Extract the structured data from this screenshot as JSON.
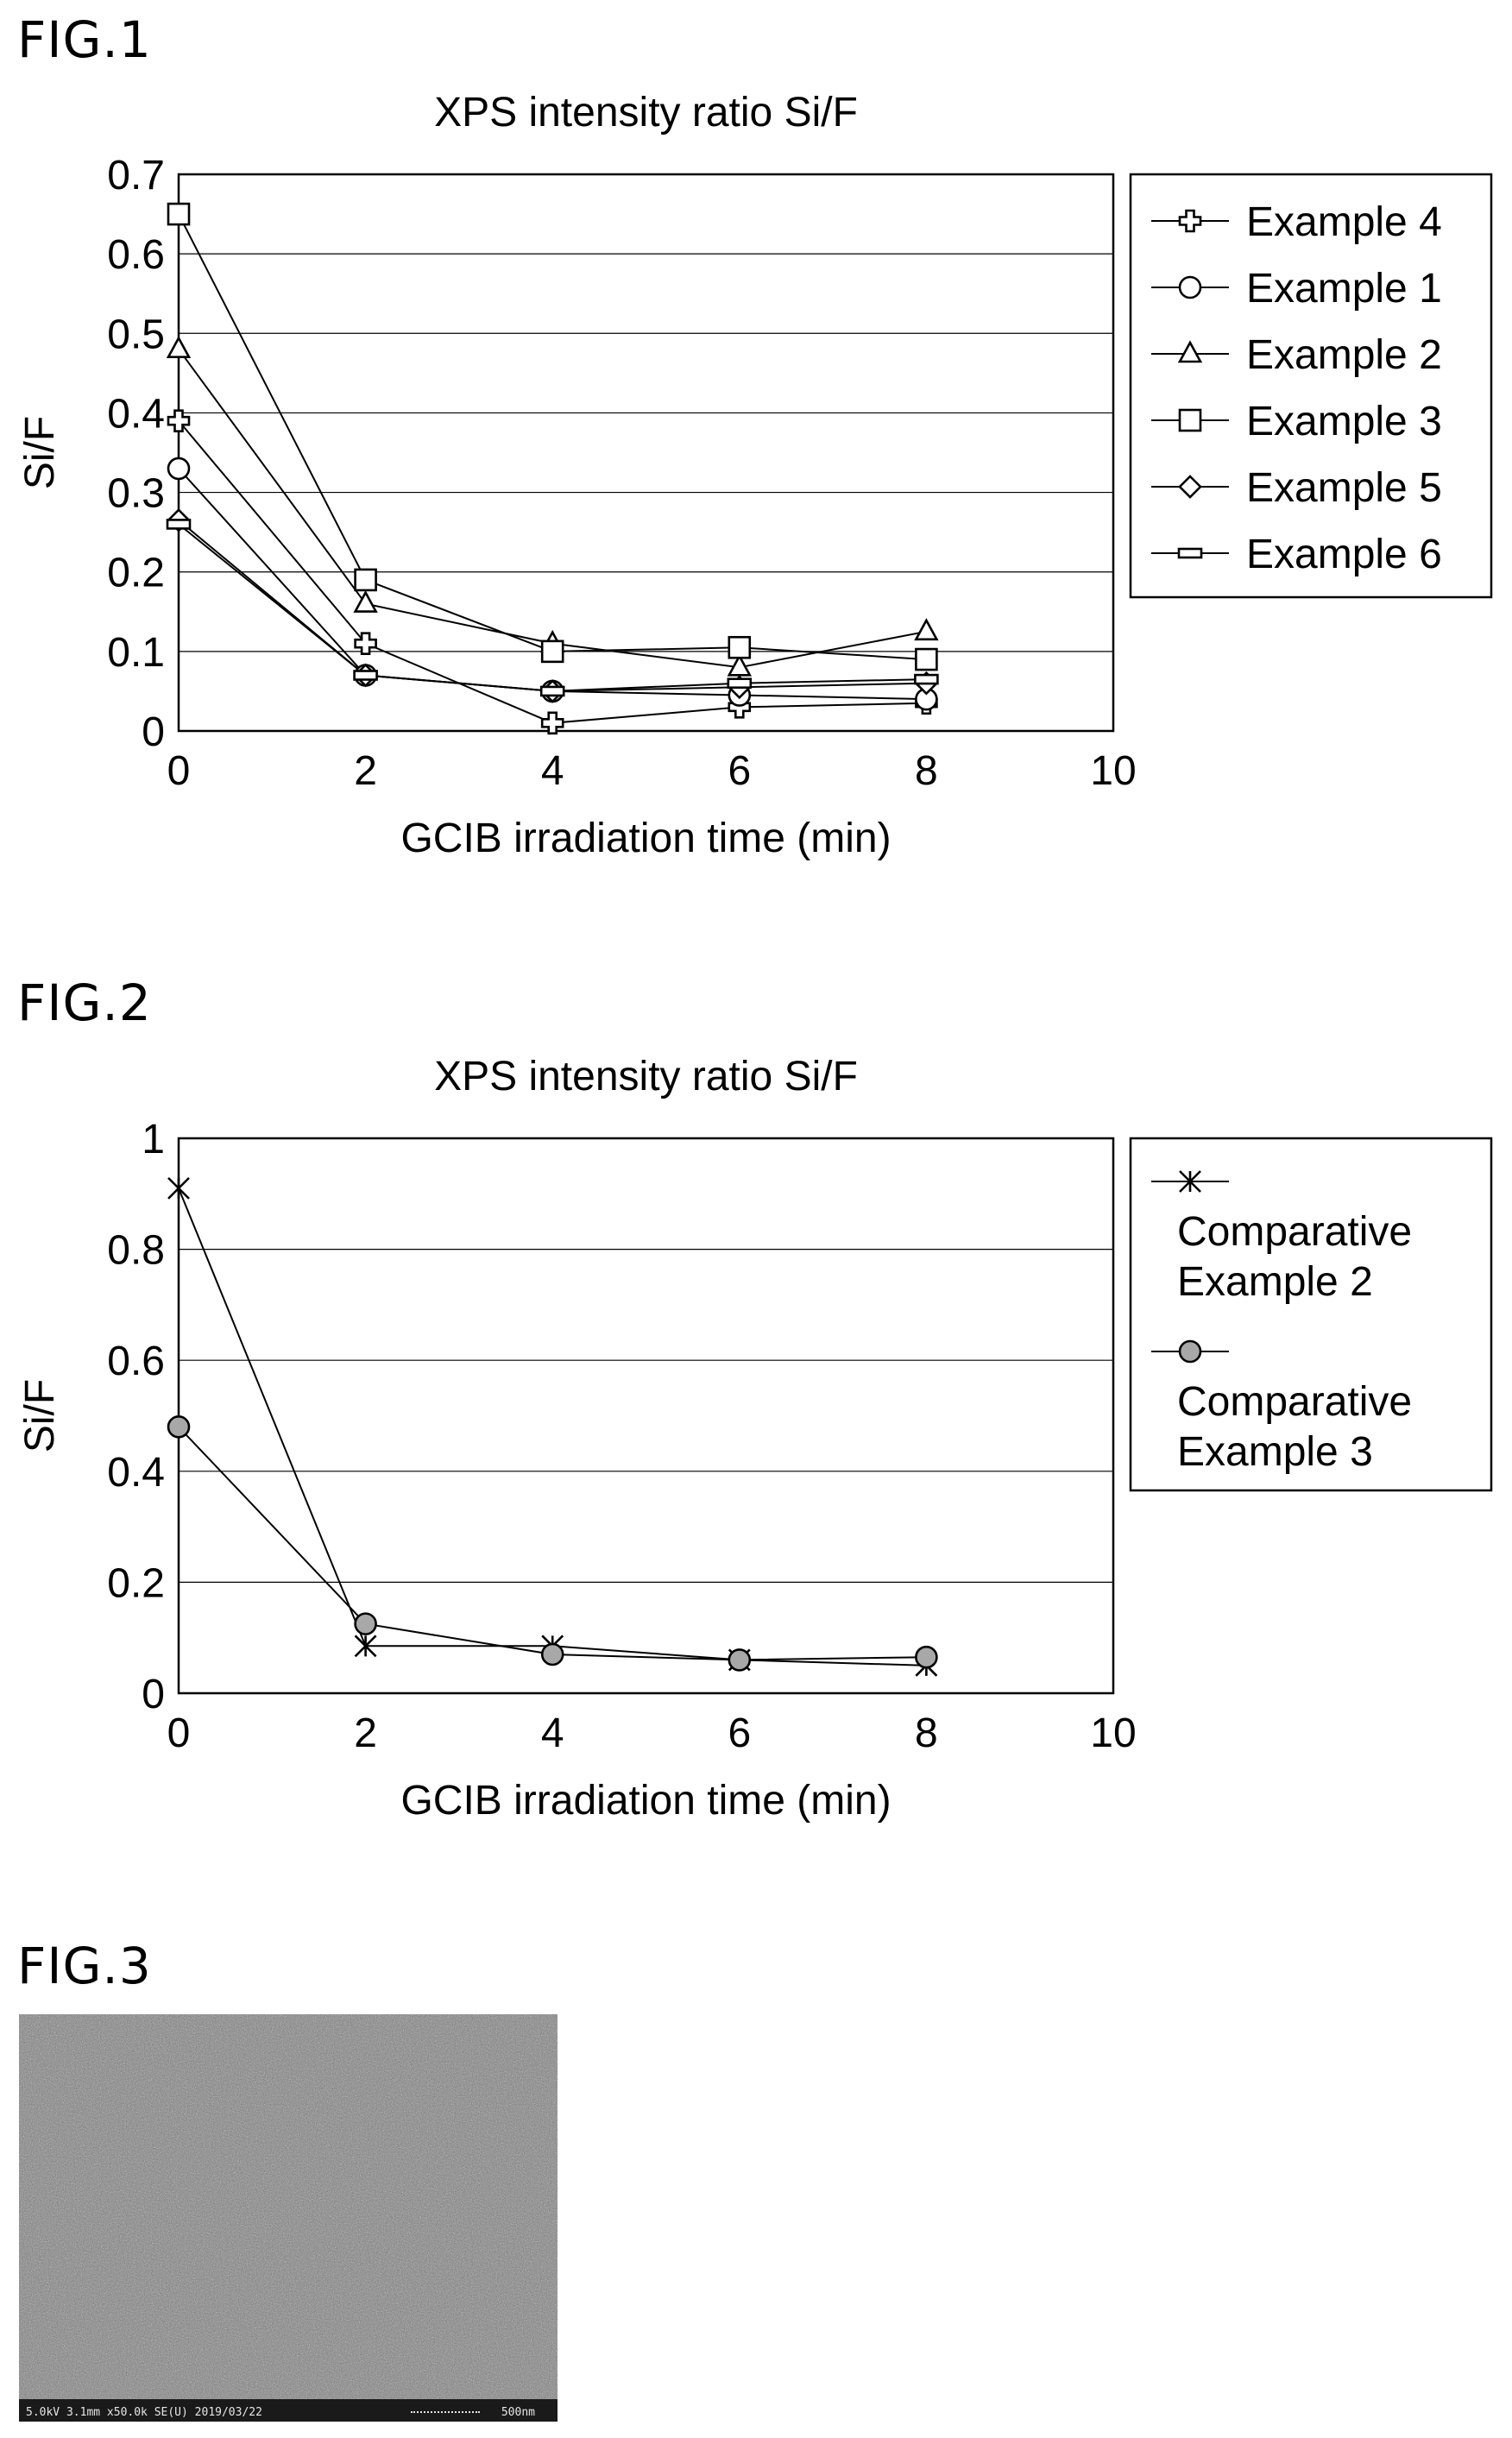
{
  "figures": [
    {
      "label": "FIG.1"
    },
    {
      "label": "FIG.2"
    },
    {
      "label": "FIG.3",
      "sem_info": "5.0kV 3.1mm x50.0k SE(U) 2019/03/22",
      "sem_scale": "500nm"
    }
  ],
  "chart_data": [
    {
      "type": "line",
      "title": "XPS intensity ratio Si/F",
      "xlabel": "GCIB irradiation time (min)",
      "ylabel": "Si/F",
      "xlim": [
        0,
        10
      ],
      "ylim": [
        0,
        0.7
      ],
      "xticks": [
        "0",
        "2",
        "4",
        "6",
        "8",
        "10"
      ],
      "yticks": [
        "0",
        "0.1",
        "0.2",
        "0.3",
        "0.4",
        "0.5",
        "0.6",
        "0.7"
      ],
      "grid": "horizontal",
      "legend_position": "right",
      "x": [
        0,
        2,
        4,
        6,
        8
      ],
      "series": [
        {
          "name": "Example 4",
          "marker": "cross",
          "values": [
            0.39,
            0.11,
            0.01,
            0.03,
            0.035
          ]
        },
        {
          "name": "Example 1",
          "marker": "circle",
          "values": [
            0.33,
            0.07,
            0.05,
            0.045,
            0.04
          ]
        },
        {
          "name": "Example 2",
          "marker": "triangle",
          "values": [
            0.48,
            0.16,
            0.11,
            0.08,
            0.125
          ]
        },
        {
          "name": "Example 3",
          "marker": "square",
          "values": [
            0.65,
            0.19,
            0.1,
            0.105,
            0.09
          ]
        },
        {
          "name": "Example 5",
          "marker": "diamond",
          "values": [
            0.265,
            0.07,
            0.05,
            0.055,
            0.06
          ]
        },
        {
          "name": "Example 6",
          "marker": "dash",
          "values": [
            0.26,
            0.07,
            0.05,
            0.06,
            0.065
          ]
        }
      ]
    },
    {
      "type": "line",
      "title": "XPS intensity ratio Si/F",
      "xlabel": "GCIB irradiation time (min)",
      "ylabel": "Si/F",
      "xlim": [
        0,
        10
      ],
      "ylim": [
        0,
        1
      ],
      "xticks": [
        "0",
        "2",
        "4",
        "6",
        "8",
        "10"
      ],
      "yticks": [
        "0",
        "0.2",
        "0.4",
        "0.6",
        "0.8",
        "1"
      ],
      "grid": "horizontal",
      "legend_position": "right",
      "x": [
        0,
        2,
        4,
        6,
        8
      ],
      "series": [
        {
          "name": "Comparative Example 2",
          "name_lines": [
            "Comparative",
            "Example 2"
          ],
          "marker": "asterisk",
          "values": [
            0.91,
            0.085,
            0.085,
            0.06,
            0.05
          ]
        },
        {
          "name": "Comparative Example 3",
          "name_lines": [
            "Comparative",
            "Example 3"
          ],
          "marker": "filled-circle",
          "values": [
            0.48,
            0.125,
            0.07,
            0.06,
            0.065
          ]
        }
      ]
    }
  ]
}
